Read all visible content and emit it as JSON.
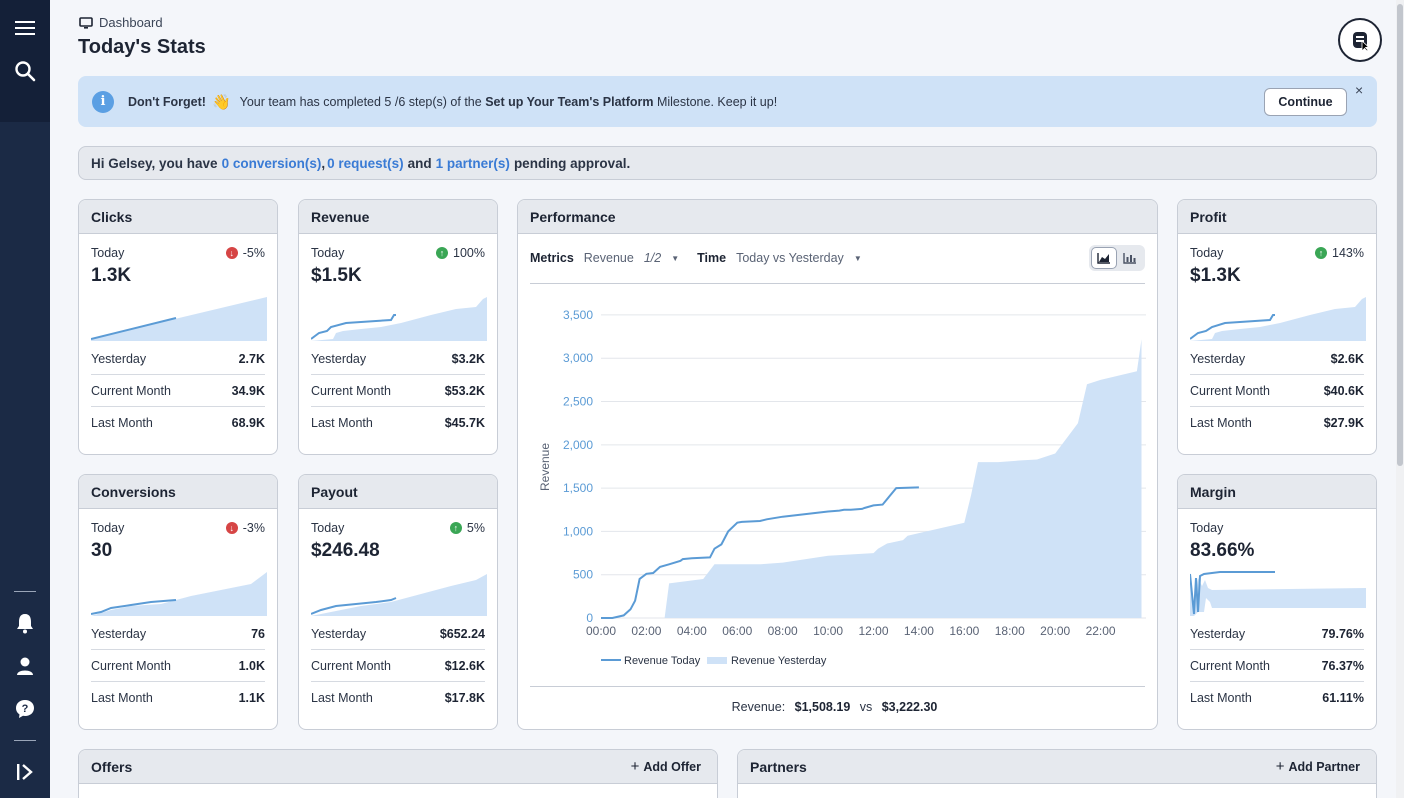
{
  "app": {
    "breadcrumb": "Dashboard",
    "page_title": "Today's Stats"
  },
  "sidebar": {
    "items": [
      {
        "icon": "hamburger-icon"
      },
      {
        "icon": "search-icon"
      },
      {
        "icon": "bell-icon"
      },
      {
        "icon": "user-icon"
      },
      {
        "icon": "help-icon"
      },
      {
        "icon": "collapse-expand-icon"
      }
    ]
  },
  "banner": {
    "title": "Don't Forget!",
    "emoji": "👋",
    "text_before": "Your team has completed 5 /6 step(s) of the",
    "milestone": "Set up Your Team's Platform",
    "text_after": "Milestone. Keep it up!",
    "continue_label": "Continue",
    "close_label": "×"
  },
  "pending": {
    "greeting": "Hi Gelsey, you have",
    "conversions": "0 conversion(s)",
    "sep": ",",
    "requests": "0 request(s)",
    "and": "and",
    "partners": "1 partner(s)",
    "suffix": "pending approval."
  },
  "cards": {
    "clicks": {
      "title": "Clicks",
      "today_label": "Today",
      "change": "-5%",
      "direction": "down",
      "value": "1.3K",
      "yesterday_label": "Yesterday",
      "yesterday": "2.7K",
      "current_month_label": "Current Month",
      "current_month": "34.9K",
      "last_month_label": "Last Month",
      "last_month": "68.9K"
    },
    "revenue": {
      "title": "Revenue",
      "today_label": "Today",
      "change": "100%",
      "direction": "up",
      "value": "$1.5K",
      "yesterday_label": "Yesterday",
      "yesterday": "$3.2K",
      "current_month_label": "Current Month",
      "current_month": "$53.2K",
      "last_month_label": "Last Month",
      "last_month": "$45.7K"
    },
    "profit": {
      "title": "Profit",
      "today_label": "Today",
      "change": "143%",
      "direction": "up",
      "value": "$1.3K",
      "yesterday_label": "Yesterday",
      "yesterday": "$2.6K",
      "current_month_label": "Current Month",
      "current_month": "$40.6K",
      "last_month_label": "Last Month",
      "last_month": "$27.9K"
    },
    "conversions": {
      "title": "Conversions",
      "today_label": "Today",
      "change": "-3%",
      "direction": "down",
      "value": "30",
      "yesterday_label": "Yesterday",
      "yesterday": "76",
      "current_month_label": "Current Month",
      "current_month": "1.0K",
      "last_month_label": "Last Month",
      "last_month": "1.1K"
    },
    "payout": {
      "title": "Payout",
      "today_label": "Today",
      "change": "5%",
      "direction": "up",
      "value": "$246.48",
      "yesterday_label": "Yesterday",
      "yesterday": "$652.24",
      "current_month_label": "Current Month",
      "current_month": "$12.6K",
      "last_month_label": "Last Month",
      "last_month": "$17.8K"
    },
    "margin": {
      "title": "Margin",
      "today_label": "Today",
      "value": "83.66%",
      "yesterday_label": "Yesterday",
      "yesterday": "79.76%",
      "current_month_label": "Current Month",
      "current_month": "76.37%",
      "last_month_label": "Last Month",
      "last_month": "61.11%"
    }
  },
  "performance": {
    "title": "Performance",
    "metrics_label": "Metrics",
    "metrics_value": "Revenue",
    "metrics_page": "1/2",
    "time_label": "Time",
    "time_value": "Today vs Yesterday",
    "total_label": "Revenue:",
    "total_today": "$1,508.19",
    "vs_label": "vs",
    "total_yesterday": "$3,222.30"
  },
  "bottom": {
    "offers_title": "Offers",
    "add_offer": "Add Offer",
    "partners_title": "Partners",
    "add_partner": "Add Partner"
  },
  "colors": {
    "accent": "#3a7bd5",
    "line": "#5b9bd5",
    "area": "#cfe2f7",
    "up": "#3aa655",
    "down": "#d64545",
    "sidebar": "#1b2a45"
  },
  "chart_data": {
    "type": "area",
    "title": "",
    "xlabel": "",
    "ylabel": "Revenue",
    "x_ticks": [
      "00:00",
      "02:00",
      "04:00",
      "06:00",
      "08:00",
      "10:00",
      "12:00",
      "14:00",
      "16:00",
      "18:00",
      "20:00",
      "22:00"
    ],
    "y_ticks": [
      "0",
      "500",
      "1,000",
      "1,500",
      "2,000",
      "2,500",
      "3,000",
      "3,500"
    ],
    "ylim": [
      0,
      3500
    ],
    "legend": "bottom",
    "series": [
      {
        "name": "Revenue Today",
        "style": "line",
        "x": [
          0,
          0.5,
          1.0,
          1.3,
          1.5,
          1.7,
          2.0,
          2.3,
          2.6,
          3.0,
          3.5,
          3.6,
          4.0,
          4.8,
          5.0,
          5.3,
          5.6,
          6.0,
          6.2,
          7.0,
          7.3,
          8.0,
          9.0,
          10.0,
          10.5,
          10.7,
          11.0,
          11.5,
          11.6,
          12.0,
          12.4,
          13.0,
          14.0
        ],
        "y": [
          0,
          0,
          30,
          100,
          200,
          450,
          510,
          520,
          590,
          620,
          660,
          680,
          690,
          700,
          800,
          850,
          1000,
          1100,
          1110,
          1120,
          1140,
          1170,
          1200,
          1230,
          1240,
          1250,
          1250,
          1260,
          1270,
          1300,
          1310,
          1500,
          1508
        ]
      },
      {
        "name": "Revenue Yesterday",
        "style": "area",
        "x": [
          0,
          2.8,
          3.0,
          4.5,
          5.0,
          7.0,
          8.0,
          10.0,
          12.0,
          12.2,
          12.6,
          13.3,
          13.5,
          14.0,
          16.0,
          16.3,
          16.6,
          17.5,
          18.5,
          19.2,
          20.0,
          21.0,
          21.4,
          22.0,
          23.6,
          23.8
        ],
        "y": [
          0,
          0,
          400,
          450,
          620,
          620,
          640,
          720,
          750,
          800,
          860,
          900,
          950,
          980,
          1100,
          1420,
          1800,
          1800,
          1820,
          1830,
          1900,
          2250,
          2700,
          2750,
          2850,
          3220
        ]
      }
    ]
  }
}
